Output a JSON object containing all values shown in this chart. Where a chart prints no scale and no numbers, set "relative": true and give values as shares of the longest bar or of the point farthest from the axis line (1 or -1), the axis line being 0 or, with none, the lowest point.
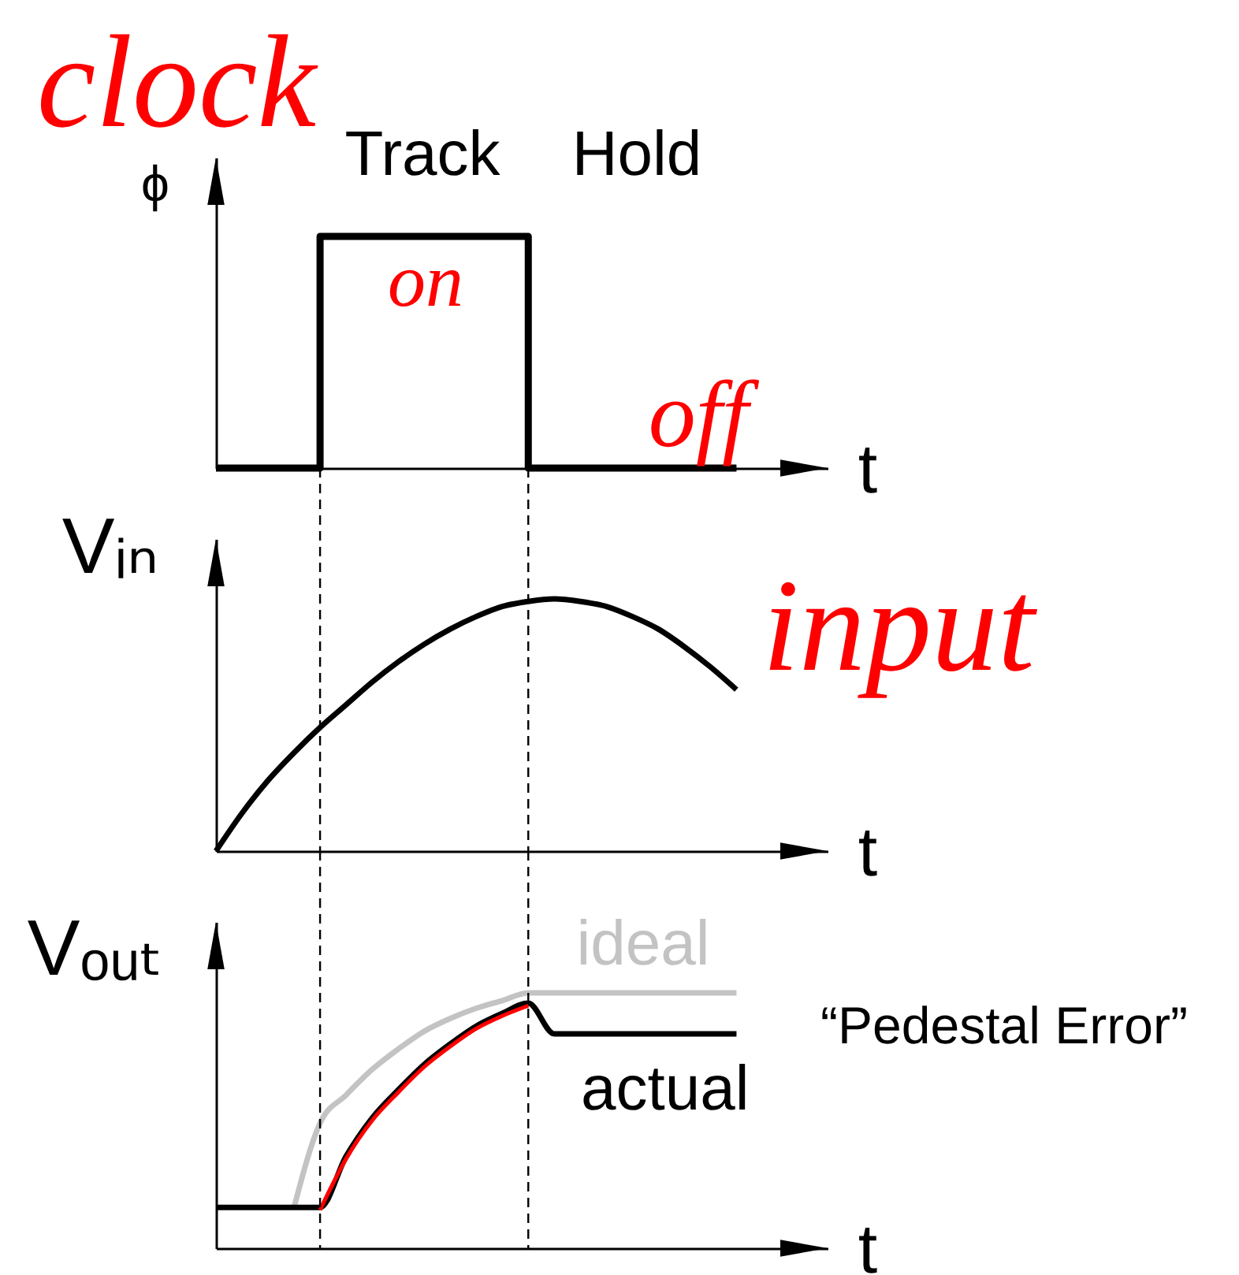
{
  "chart_data": [
    {
      "type": "step",
      "relative": true,
      "ylabel": "ϕ",
      "xlabel": "t",
      "color": "#000000",
      "categories": [
        null,
        null,
        null,
        null,
        null,
        null,
        null,
        null,
        null,
        null,
        null,
        null,
        null,
        null,
        null,
        null,
        null,
        null,
        null,
        null,
        null
      ],
      "values": [
        0,
        0,
        0,
        0,
        1,
        1,
        1,
        1,
        1,
        1,
        1,
        1,
        0,
        0,
        0,
        0,
        0,
        0,
        0,
        0,
        0
      ],
      "annotations": [
        "clock",
        "Track",
        "Hold",
        "on",
        "off"
      ]
    },
    {
      "type": "line",
      "relative": true,
      "ylabel": "Vᵢₙ",
      "xlabel": "t",
      "color": "#000000",
      "categories": [
        null,
        null,
        null,
        null,
        null,
        null,
        null,
        null,
        null,
        null,
        null,
        null,
        null,
        null,
        null,
        null,
        null,
        null,
        null,
        null,
        null
      ],
      "values": [
        0,
        0.15,
        0.28,
        0.39,
        0.49,
        0.58,
        0.67,
        0.75,
        0.82,
        0.88,
        0.93,
        0.97,
        0.99,
        1,
        0.99,
        0.97,
        0.93,
        0.88,
        0.81,
        0.73,
        0.64
      ],
      "annotations": [
        "input"
      ]
    },
    {
      "type": "line",
      "relative": true,
      "ylabel": "Vₒᵤₜ",
      "xlabel": "t",
      "categories": [
        null,
        null,
        null,
        null,
        null,
        null,
        null,
        null,
        null,
        null,
        null,
        null,
        null,
        null,
        null,
        null,
        null,
        null,
        null,
        null,
        null
      ],
      "series": [
        {
          "name": "ideal",
          "color": "#c3c3c3",
          "values": [
            null,
            null,
            null,
            0.16,
            0.49,
            0.6,
            0.7,
            0.78,
            0.85,
            0.9,
            0.94,
            0.97,
            1,
            1,
            1,
            1,
            1,
            1,
            1,
            1,
            1
          ]
        },
        {
          "name": "actual",
          "color": "#000000",
          "values": [
            0.16,
            0.16,
            0.16,
            0.16,
            0.16,
            0.36,
            0.51,
            0.62,
            0.72,
            0.8,
            0.87,
            0.92,
            0.96,
            0.84,
            0.84,
            0.84,
            0.84,
            0.84,
            0.84,
            0.84,
            0.84
          ]
        },
        {
          "color": "#ff0000",
          "values": [
            null,
            null,
            null,
            null,
            0.15,
            0.35,
            0.5,
            0.61,
            0.71,
            0.79,
            0.86,
            0.91,
            0.95,
            null,
            null,
            null,
            null,
            null,
            null,
            null,
            null
          ]
        }
      ],
      "annotations": [
        "“Pedestal Error”"
      ]
    }
  ]
}
